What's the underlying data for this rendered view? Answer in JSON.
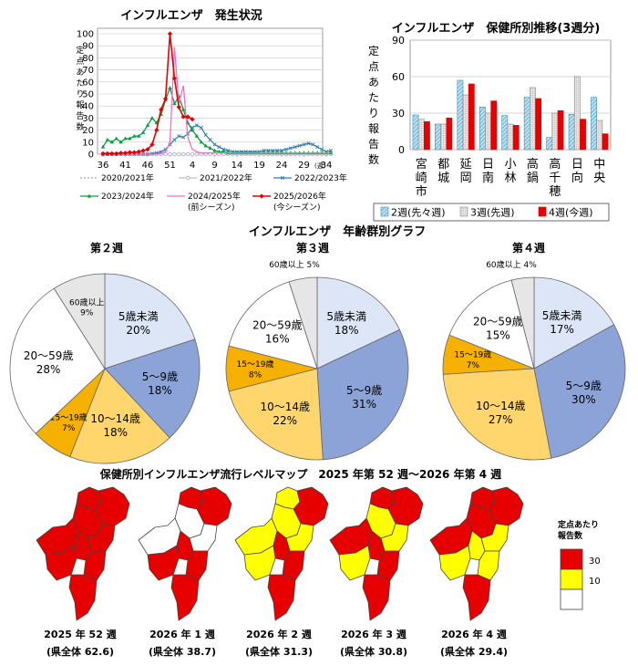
{
  "colors": {
    "red": "#e60000",
    "yellow": "#ffff00",
    "white": "#ffffff",
    "s2020": "#8a8a8a",
    "s2021": "#a9a9c8",
    "s2022": "#2e7db0",
    "s2023": "#0b9d3f",
    "s2024": "#ff69c8",
    "s2025": "#e60000",
    "bar_prev2": "#b8e0f0",
    "bar_prev": "#e6e6e6",
    "bar_now": "#e60000",
    "pie_under5": "#dde6f6",
    "pie_5to9": "#8ca3d8",
    "pie_10to14": "#ffd66e",
    "pie_15to19": "#f5b000",
    "pie_20to59": "#ffffff",
    "pie_60plus": "#e6e6e6"
  },
  "chart_data": [
    {
      "type": "line",
      "title": "インフルエンザ　発生状況",
      "ylabel": "定点あたり報告数",
      "ylim": [
        0,
        100
      ],
      "yticks": [
        0,
        10,
        20,
        30,
        40,
        50,
        60,
        70,
        80,
        90,
        100
      ],
      "xticks": [
        "36",
        "41",
        "46",
        "51",
        "4",
        "9",
        "14",
        "19",
        "24",
        "29",
        "34"
      ],
      "x_unit": "(週)",
      "weeks": [
        "36",
        "37",
        "38",
        "39",
        "40",
        "41",
        "42",
        "43",
        "44",
        "45",
        "46",
        "47",
        "48",
        "49",
        "50",
        "51",
        "52",
        "1",
        "2",
        "3",
        "4",
        "5",
        "6",
        "7",
        "8",
        "9",
        "10",
        "11",
        "12",
        "13",
        "14",
        "15",
        "16",
        "17",
        "18",
        "19",
        "20",
        "21",
        "22",
        "23",
        "24",
        "25",
        "26",
        "27",
        "28",
        "29",
        "30",
        "31",
        "32",
        "33",
        "34",
        "35"
      ],
      "series": [
        {
          "name": "2020/2021年",
          "values": [
            0,
            0,
            0,
            0,
            0,
            0,
            0,
            0,
            0,
            0,
            0,
            0,
            0,
            0,
            0,
            0,
            0,
            0,
            0,
            0,
            0,
            0,
            0,
            0,
            0,
            0,
            0,
            0,
            0,
            0,
            0,
            0,
            0,
            0,
            0,
            0,
            0,
            0,
            0,
            0,
            0,
            0,
            0,
            0,
            0,
            0,
            0,
            0,
            0,
            0,
            0,
            0
          ]
        },
        {
          "name": "2021/2022年",
          "values": [
            0,
            0,
            0,
            0,
            0,
            0,
            0,
            0,
            0,
            0,
            0,
            0,
            0,
            0,
            0,
            0,
            0,
            0,
            0,
            0,
            0,
            0,
            0,
            0,
            0,
            0,
            0,
            0,
            0,
            0,
            0,
            0,
            0,
            0,
            0,
            0,
            0,
            0,
            0,
            0,
            0,
            0,
            0,
            0,
            0,
            0,
            0,
            0,
            0,
            0,
            0,
            0
          ]
        },
        {
          "name": "2022/2023年",
          "values": [
            0,
            0,
            0,
            0,
            0,
            0,
            0,
            0,
            0,
            0,
            0,
            0.5,
            1,
            2,
            4,
            8,
            12,
            15,
            14,
            17,
            22,
            24,
            22,
            16,
            12,
            8,
            6,
            4,
            3,
            2,
            2,
            2,
            2,
            2,
            2,
            2,
            3,
            3,
            3,
            3,
            3,
            4,
            5,
            6,
            7,
            8,
            9,
            8,
            6,
            4,
            2,
            3
          ]
        },
        {
          "name": "2023/2024年",
          "values": [
            6,
            12,
            10,
            13,
            10,
            13,
            13,
            15,
            15,
            18,
            24,
            30,
            26,
            33,
            45,
            55,
            42,
            48,
            37,
            26,
            20,
            15,
            10,
            7,
            5,
            3,
            2,
            2,
            1,
            1,
            1,
            1,
            1,
            1,
            1,
            1,
            1,
            1,
            1,
            1,
            1,
            1,
            1,
            1,
            1,
            1,
            1,
            1,
            1,
            1,
            1,
            1
          ]
        },
        {
          "name": "2024/2025年\n(前シーズン)",
          "values": [
            0,
            0,
            0,
            0,
            0,
            0,
            0,
            0,
            0,
            0,
            0,
            0,
            0,
            0.5,
            2,
            10,
            89,
            42,
            57,
            14,
            4,
            2,
            1,
            1,
            1,
            1,
            1,
            1,
            1,
            1,
            1,
            1,
            1,
            1,
            1,
            1,
            1,
            1,
            1,
            1,
            1,
            1,
            1,
            1,
            1,
            1,
            1,
            1,
            1,
            1,
            1,
            1
          ]
        },
        {
          "name": "2025/2026年\n(今シーズン)",
          "values": [
            0.5,
            0.5,
            0.5,
            0.5,
            1,
            1,
            1.5,
            1.5,
            2,
            3,
            4,
            8,
            20,
            37,
            46,
            100,
            63,
            39,
            31,
            31,
            29
          ]
        }
      ]
    },
    {
      "type": "bar",
      "title": "インフルエンザ　保健所別推移(3週分)",
      "ylabel": "定点あたり報告数",
      "ylim": [
        0,
        90
      ],
      "yticks": [
        0,
        30,
        60,
        90
      ],
      "categories": [
        "宮崎市",
        "都城",
        "延岡",
        "日南",
        "小林",
        "高鍋",
        "高千穂",
        "日向",
        "中央"
      ],
      "series": [
        {
          "name": "2週(先々週)",
          "values": [
            28.5,
            21,
            57,
            35,
            28,
            43,
            10,
            29,
            43
          ]
        },
        {
          "name": "3週(先週)",
          "values": [
            25,
            21,
            45,
            30,
            21,
            51,
            30,
            60,
            24
          ]
        },
        {
          "name": "4週(今週)",
          "values": [
            23,
            26,
            54,
            40,
            20,
            42,
            32,
            25,
            13
          ]
        }
      ]
    },
    {
      "type": "pie",
      "section_title": "インフルエンザ　年齢群別グラフ",
      "charts": [
        {
          "title": "第２週",
          "slices": [
            {
              "label": "5歳未満",
              "pct": "20%",
              "value": 20
            },
            {
              "label": "5～9歳",
              "pct": "18%",
              "value": 18
            },
            {
              "label": "10～14歳",
              "pct": "18%",
              "value": 18
            },
            {
              "label": "15～19歳",
              "pct": "7%",
              "value": 7
            },
            {
              "label": "20～59歳",
              "pct": "28%",
              "value": 28
            },
            {
              "label": "60歳以上",
              "pct": "9%",
              "value": 9
            }
          ]
        },
        {
          "title": "第３週",
          "slices": [
            {
              "label": "5歳未満",
              "pct": "18%",
              "value": 18
            },
            {
              "label": "5～9歳",
              "pct": "31%",
              "value": 31
            },
            {
              "label": "10～14歳",
              "pct": "22%",
              "value": 22
            },
            {
              "label": "15～19歳",
              "pct": "8%",
              "value": 8
            },
            {
              "label": "20～59歳",
              "pct": "16%",
              "value": 16
            },
            {
              "label": "60歳以上",
              "pct": "5%",
              "value": 5
            }
          ]
        },
        {
          "title": "第４週",
          "slices": [
            {
              "label": "5歳未満",
              "pct": "17%",
              "value": 17
            },
            {
              "label": "5～9歳",
              "pct": "30%",
              "value": 30
            },
            {
              "label": "10～14歳",
              "pct": "27%",
              "value": 27
            },
            {
              "label": "15～19歳",
              "pct": "7%",
              "value": 7
            },
            {
              "label": "20～59歳",
              "pct": "15%",
              "value": 15
            },
            {
              "label": "60歳以上",
              "pct": "4%",
              "value": 4
            }
          ]
        }
      ]
    }
  ],
  "map_section": {
    "title": "保健所別インフルエンザ流行レベルマップ　2025 年第 52 週～2026 年第 4 週",
    "legend_title": "定点あたり\n報告数",
    "legend_levels": [
      "30",
      "10"
    ],
    "maps": [
      {
        "week": "2025 年 52 週",
        "total": "(県全体 62.6)",
        "fills": [
          "red",
          "red",
          "red",
          "red",
          "red",
          "red",
          "red",
          "red",
          "red"
        ]
      },
      {
        "week": "2026 年 1 週",
        "total": "(県全体 38.7)",
        "fills": [
          "red",
          "red",
          "white",
          "white",
          "white",
          "red",
          "red",
          "red",
          "red"
        ]
      },
      {
        "week": "2026 年 2 週",
        "total": "(県全体 31.3)",
        "fills": [
          "yellow",
          "red",
          "yellow",
          "yellow",
          "yellow",
          "red",
          "yellow",
          "red",
          "red"
        ]
      },
      {
        "week": "2026 年 3 週",
        "total": "(県全体 30.8)",
        "fills": [
          "red",
          "red",
          "yellow",
          "red",
          "yellow",
          "red",
          "yellow",
          "red",
          "red"
        ]
      },
      {
        "week": "2026 年 4 週",
        "total": "(県全体 29.4)",
        "fills": [
          "red",
          "red",
          "red",
          "red",
          "yellow",
          "yellow",
          "yellow",
          "yellow",
          "red"
        ]
      }
    ]
  }
}
